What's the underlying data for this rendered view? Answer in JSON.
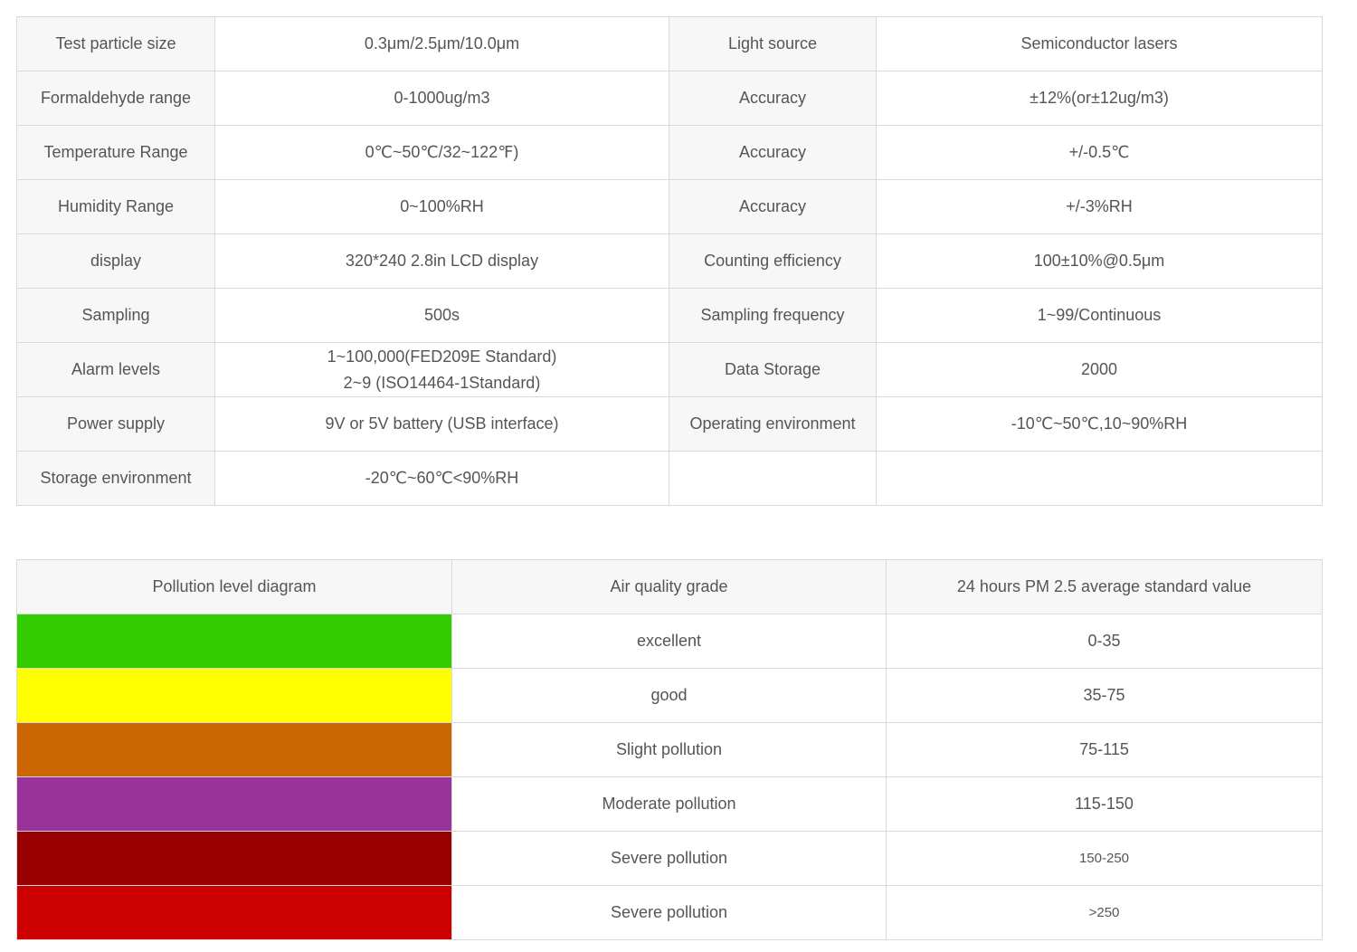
{
  "spec_table": {
    "rows": [
      {
        "l1": "Test particle size",
        "v1": "0.3μm/2.5μm/10.0μm",
        "l2": "Light source",
        "v2": "Semiconductor lasers"
      },
      {
        "l1": "Formaldehyde range",
        "v1": "0-1000ug/m3",
        "l2": "Accuracy",
        "v2": "±12%(or±12ug/m3)"
      },
      {
        "l1": "Temperature Range",
        "v1": "0℃~50℃/32~122℉)",
        "l2": "Accuracy",
        "v2": "+/-0.5℃"
      },
      {
        "l1": "Humidity Range",
        "v1": "0~100%RH",
        "l2": "Accuracy",
        "v2": "+/-3%RH"
      },
      {
        "l1": "display",
        "v1": "320*240 2.8in LCD display",
        "l2": "Counting efficiency",
        "v2": "100±10%@0.5μm"
      },
      {
        "l1": "Sampling",
        "v1": "500s",
        "l2": "Sampling frequency",
        "v2": "1~99/Continuous"
      },
      {
        "l1": "Alarm levels",
        "v1_line1": "1~100,000(FED209E Standard)",
        "v1_line2": "2~9  (ISO14464-1Standard)",
        "l2": "Data Storage",
        "v2": "2000"
      },
      {
        "l1": "Power supply",
        "v1": "9V or 5V battery (USB interface)",
        "l2": "Operating environment",
        "v2": "-10℃~50℃,10~90%RH"
      },
      {
        "l1": "Storage environment",
        "v1": "-20℃~60℃<90%RH",
        "l2": "",
        "v2": ""
      }
    ]
  },
  "pollution_table": {
    "headers": [
      "Pollution level diagram",
      "Air quality grade",
      "24 hours PM 2.5 average standard value"
    ],
    "rows": [
      {
        "color": "#33cc00",
        "grade": "excellent",
        "value": "0-35"
      },
      {
        "color": "#ffff00",
        "grade": "good",
        "value": "35-75"
      },
      {
        "color": "#cc6600",
        "grade": "Slight pollution",
        "value": "75-115"
      },
      {
        "color": "#993399",
        "grade": "Moderate pollution",
        "value": "115-150"
      },
      {
        "color": "#990000",
        "grade": "Severe pollution",
        "value": "150-250"
      },
      {
        "color": "#cc0000",
        "grade": "Severe pollution",
        "value": ">250"
      }
    ]
  }
}
